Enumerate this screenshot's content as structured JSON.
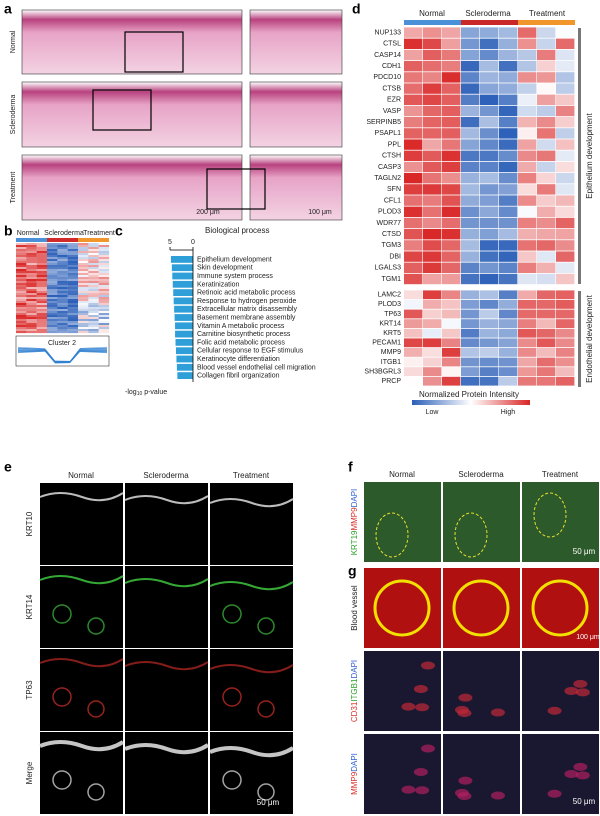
{
  "panels": {
    "a": {
      "letter": "a",
      "rows": [
        "Normal",
        "Scleroderma",
        "Treatment"
      ],
      "scale_bars": [
        "200 μm",
        "100 μm"
      ]
    },
    "b": {
      "letter": "b",
      "groups": [
        "Normal",
        "Scleroderma",
        "Treatment"
      ],
      "cluster": "Cluster 2"
    },
    "c": {
      "letter": "c"
    },
    "d": {
      "letter": "d",
      "groups": [
        "Normal",
        "Scleroderma",
        "Treatment"
      ],
      "epithelium": [
        "NUP133",
        "CTSL",
        "CASP14",
        "CDH1",
        "PDCD10",
        "CTSB",
        "EZR",
        "VASP",
        "SERPINB5",
        "PSAPL1",
        "PPL",
        "CTSH",
        "CASP3",
        "TAGLN2",
        "SFN",
        "CFL1",
        "PLOD3",
        "WDR77",
        "CTSD",
        "TGM3",
        "DBI",
        "LGALS3",
        "TGM1"
      ],
      "endothelial": [
        "LAMC2",
        "PLOD3",
        "TP63",
        "KRT14",
        "KRT5",
        "PECAM1",
        "MMP9",
        "ITGB1",
        "SH3BGRL3",
        "PRCP"
      ],
      "side_labels": [
        "Epithelium development",
        "Endothelial development"
      ],
      "legend_title": "Normalized  Protein  Intensity",
      "low": "Low",
      "high": "High"
    },
    "e": {
      "letter": "e",
      "columns": [
        "Normal",
        "Scleroderma",
        "Treatment"
      ],
      "rows": [
        "KRT10",
        "KRT14",
        "TP63",
        "Merge"
      ],
      "scale_bar": "50 μm"
    },
    "f": {
      "letter": "f",
      "columns": [
        "Normal",
        "Scleroderma",
        "Treatment"
      ],
      "row_label": [
        "KRT19",
        "MMP9",
        "DAPI"
      ],
      "scale_bar": "50 μm"
    },
    "g": {
      "letter": "g",
      "rows": [
        "Blood vessel"
      ],
      "row_labels": [
        [
          "CD31",
          "ITGB1",
          "DAPI"
        ],
        [
          "MMP9",
          "DAPI"
        ]
      ],
      "scale_bars": [
        "100 μm",
        "50 μm"
      ]
    }
  },
  "chart_data": {
    "type": "bar",
    "title": "Biological process",
    "orientation": "horizontal",
    "color": "#2e9fd8",
    "categories": [
      "Epithelium development",
      "Skin development",
      "Immune system process",
      "Keratinization",
      "Retinoic acid metabolic process",
      "Response to hydrogen peroxide",
      "Extracellular matrix disassembly",
      "Basement membrane assembly",
      "Vitamin A metabolic process",
      "Carnitine biosynthetic process",
      "Folic acid metabolic process",
      "Cellular response to EGF stimulus",
      "Keratinocyte differentiation",
      "Blood vessel endothelial cell migration",
      "Collagen fibril organization"
    ],
    "values": [
      4.8,
      4.6,
      4.5,
      4.4,
      4.3,
      4.2,
      4.1,
      4.0,
      3.9,
      3.9,
      3.8,
      3.7,
      3.6,
      3.5,
      3.4
    ],
    "xlim": [
      5,
      0
    ],
    "xticks": [
      5,
      0
    ],
    "x_label": [
      "-log",
      "10",
      " p-value"
    ]
  }
}
